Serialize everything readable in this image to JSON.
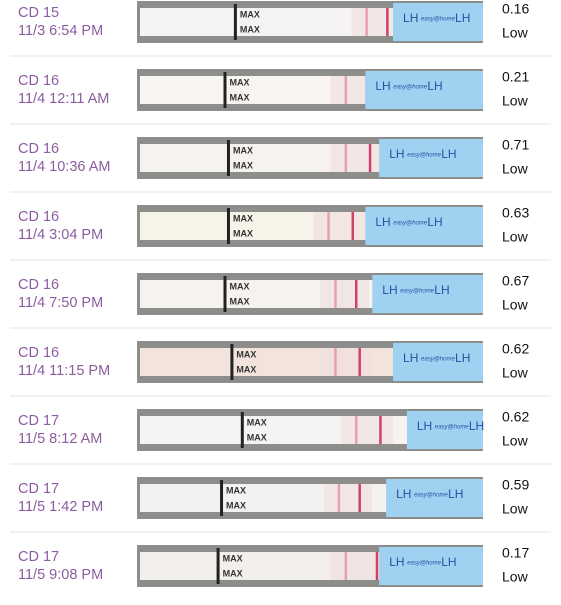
{
  "strip": {
    "marker": "MAX",
    "test": "LH",
    "brand": "easy@home"
  },
  "rows": [
    {
      "cycle_day": "CD 15",
      "time": "11/3 6:54 PM",
      "value": "0.16",
      "level": "Low"
    },
    {
      "cycle_day": "CD 16",
      "time": "11/4 12:11 AM",
      "value": "0.21",
      "level": "Low"
    },
    {
      "cycle_day": "CD 16",
      "time": "11/4 10:36 AM",
      "value": "0.71",
      "level": "Low"
    },
    {
      "cycle_day": "CD 16",
      "time": "11/4 3:04 PM",
      "value": "0.63",
      "level": "Low"
    },
    {
      "cycle_day": "CD 16",
      "time": "11/4 7:50 PM",
      "value": "0.67",
      "level": "Low"
    },
    {
      "cycle_day": "CD 16",
      "time": "11/4 11:15 PM",
      "value": "0.62",
      "level": "Low"
    },
    {
      "cycle_day": "CD 17",
      "time": "11/5 8:12 AM",
      "value": "0.62",
      "level": "Low"
    },
    {
      "cycle_day": "CD 17",
      "time": "11/5 1:42 PM",
      "value": "0.59",
      "level": "Low"
    },
    {
      "cycle_day": "CD 17",
      "time": "11/5 9:08 PM",
      "value": "0.17",
      "level": "Low"
    }
  ]
}
